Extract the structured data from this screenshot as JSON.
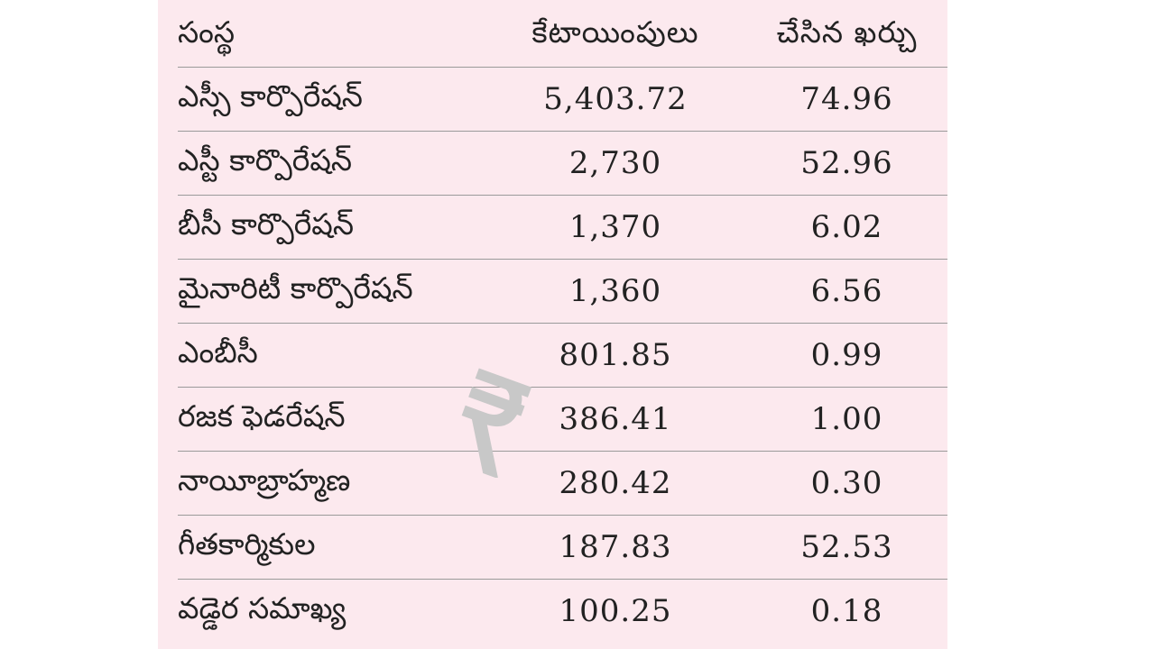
{
  "table": {
    "header": [
      "సంస్థ",
      "కేటాయింపులు",
      "చేసిన ఖర్చు"
    ],
    "rows": [
      [
        "ఎస్సీ కార్పొరేషన్",
        "5,403.72",
        "74.96"
      ],
      [
        "ఎస్టీ కార్పొరేషన్",
        "2,730",
        "52.96"
      ],
      [
        "బీసీ కార్పొరేషన్",
        "1,370",
        "6.02"
      ],
      [
        "మైనారిటీ కార్పొరేషన్",
        "1,360",
        "6.56"
      ],
      [
        "ఎంబీసీ",
        "801.85",
        "0.99"
      ],
      [
        "రజక ఫెడరేషన్",
        "386.41",
        "1.00"
      ],
      [
        "నాయీబ్రాహ్మణ",
        "280.42",
        "0.30"
      ],
      [
        "గీతకార్మికుల",
        "187.83",
        "52.53"
      ],
      [
        "వడ్డెర సమాఖ్య",
        "100.25",
        "0.18"
      ]
    ]
  }
}
